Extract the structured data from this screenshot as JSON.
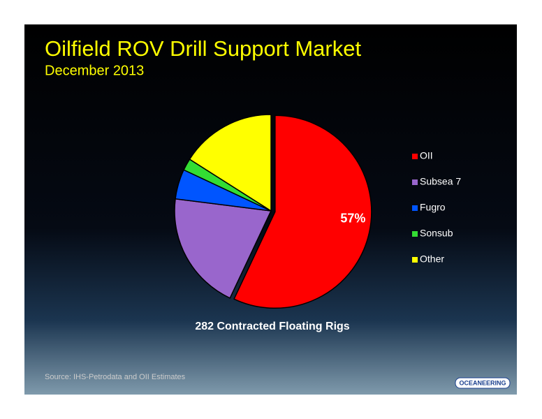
{
  "chart_data": {
    "type": "pie",
    "title": "Oilfield ROV Drill Support Market",
    "subtitle": "December 2013",
    "categories": [
      "OII",
      "Subsea 7",
      "Fugro",
      "Sonsub",
      "Other"
    ],
    "values": [
      57,
      20,
      5,
      2,
      16
    ],
    "value_labels": [
      "57%",
      null,
      null,
      null,
      null
    ],
    "colors": [
      "#ff0000",
      "#9966cc",
      "#0055ff",
      "#33dd33",
      "#ffff00"
    ],
    "legend": "right",
    "caption": "282 Contracted Floating Rigs",
    "source": "Source:  IHS-Petrodata and OII Estimates",
    "logo": "OCEANEERING"
  }
}
